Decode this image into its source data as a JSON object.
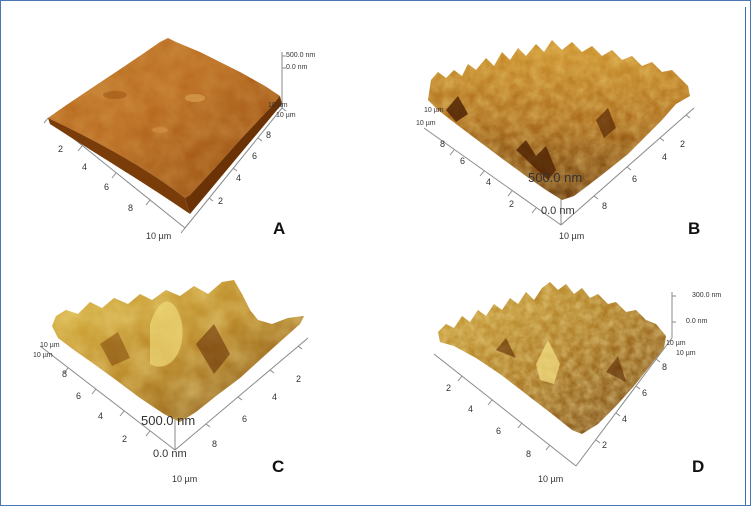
{
  "panels": [
    {
      "letter": "A",
      "height_top": "500.0 nm",
      "height_zero": "0.0 nm",
      "scan_x": "10 µm",
      "scan_y_top": "10 µm",
      "scan_y_bottom": "10 µm",
      "ticks_left": [
        "2",
        "4",
        "6",
        "8"
      ],
      "ticks_right": [
        "2",
        "4",
        "6",
        "8"
      ]
    },
    {
      "letter": "B",
      "height_top": "500.0 nm",
      "height_zero": "0.0 nm",
      "scan_x": "10 µm",
      "scan_y_a": "10 µm",
      "scan_y_b": "10 µm",
      "ticks_left": [
        "2",
        "4",
        "6",
        "8"
      ],
      "ticks_right": [
        "2",
        "4",
        "6",
        "8"
      ]
    },
    {
      "letter": "C",
      "height_top": "500.0 nm",
      "height_zero": "0.0 nm",
      "scan_x": "10 µm",
      "scan_y_a": "10 µm",
      "scan_y_b": "10 µm",
      "ticks_left": [
        "2",
        "4",
        "6",
        "8"
      ],
      "ticks_right": [
        "2",
        "4",
        "6",
        "8"
      ]
    },
    {
      "letter": "D",
      "height_top": "300.0 nm",
      "height_zero": "0.0 nm",
      "scan_x": "10 µm",
      "scan_y_a": "10 µm",
      "scan_y_b": "10 µm",
      "ticks_left": [
        "2",
        "4",
        "6",
        "8"
      ],
      "ticks_right": [
        "2",
        "4",
        "6",
        "8"
      ]
    }
  ],
  "colors": {
    "surface_dark": "#5a2a05",
    "surface_mid": "#b8660f",
    "surface_light": "#e8c24a",
    "surface_highlight": "#f6e58a",
    "frame_border": "#4a77b4"
  }
}
